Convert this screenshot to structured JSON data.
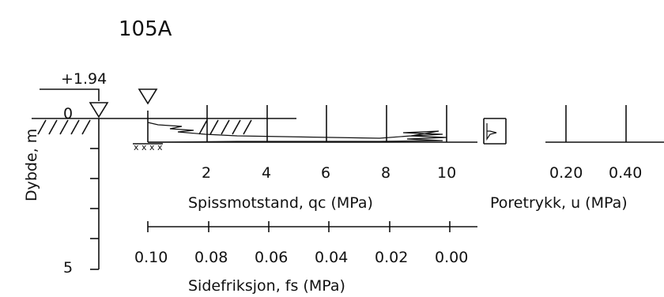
{
  "borehole_id": "105A",
  "elevation": "+1.94",
  "depth_axis": {
    "title": "Dybde, m",
    "top_label": "0",
    "bottom_label": "5"
  },
  "qc_axis": {
    "title": "Spissmotstand, qc (MPa)",
    "ticks": [
      "2",
      "4",
      "6",
      "8",
      "10"
    ]
  },
  "u_axis": {
    "title": "Poretrykk, u (MPa)",
    "ticks": [
      "0.20",
      "0.40"
    ]
  },
  "fs_axis": {
    "title": "Sidefriksjon, fs (MPa)",
    "ticks": [
      "0.10",
      "0.08",
      "0.06",
      "0.04",
      "0.02",
      "0.00"
    ]
  },
  "symbols": {
    "water_level": "inverted-triangle-icon",
    "ground_hatch": "hatch-pattern"
  }
}
